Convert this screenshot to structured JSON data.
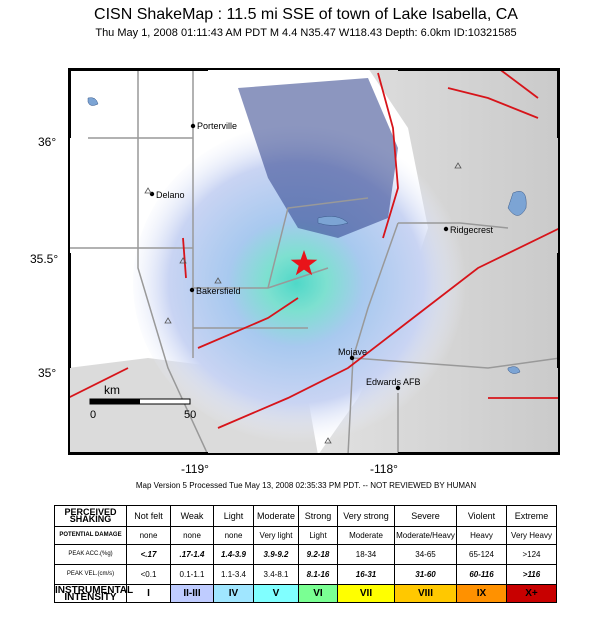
{
  "title": "CISN ShakeMap : 11.5 mi SSE of town of Lake Isabella, CA",
  "subtitle": "Thu May  1, 2008 01:11:43 AM PDT   M 4.4    N35.47 W118.43   Depth: 6.0km   ID:10321585",
  "map": {
    "lat_labels": [
      "36°",
      "35.5°",
      "35°"
    ],
    "lon_labels": [
      "-119°",
      "-118°"
    ],
    "cities": [
      "Porterville",
      "Delano",
      "Bakersfield",
      "Ridgecrest",
      "Mojave",
      "Edwards AFB"
    ],
    "scale": {
      "unit": "km",
      "start": "0",
      "end": "50"
    },
    "epicenter_color": "#e8141a",
    "fault_color": "#d7141a"
  },
  "version_text": "Map Version 5 Processed Tue May 13, 2008 02:35:33 PM PDT. -- NOT REVIEWED BY HUMAN",
  "legend": {
    "row_labels": {
      "shaking": "PERCEIVED SHAKING",
      "damage": "POTENTIAL DAMAGE",
      "acc": "PEAK ACC.(%g)",
      "vel": "PEAK VEL.(cm/s)",
      "intensity": "INSTRUMENTAL INTENSITY"
    },
    "shaking": [
      "Not felt",
      "Weak",
      "Light",
      "Moderate",
      "Strong",
      "Very strong",
      "Severe",
      "Violent",
      "Extreme"
    ],
    "damage": [
      "none",
      "none",
      "none",
      "Very light",
      "Light",
      "Moderate",
      "Moderate/Heavy",
      "Heavy",
      "Very Heavy"
    ],
    "acc": [
      "<.17",
      ".17-1.4",
      "1.4-3.9",
      "3.9-9.2",
      "9.2-18",
      "18-34",
      "34-65",
      "65-124",
      ">124"
    ],
    "vel": [
      "<0.1",
      "0.1-1.1",
      "1.1-3.4",
      "3.4-8.1",
      "8.1-16",
      "16-31",
      "31-60",
      "60-116",
      ">116"
    ],
    "intensity": [
      "I",
      "II-III",
      "IV",
      "V",
      "VI",
      "VII",
      "VIII",
      "IX",
      "X+"
    ],
    "intensity_colors": [
      "#ffffff",
      "#bfccff",
      "#a0e6ff",
      "#80ffff",
      "#7aff93",
      "#ffff00",
      "#ffc800",
      "#ff9100",
      "#c80000"
    ]
  }
}
